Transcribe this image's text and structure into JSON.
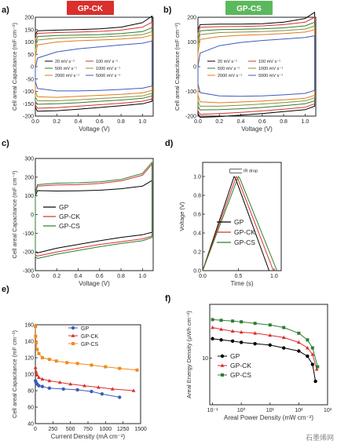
{
  "page": {
    "badges": {
      "a": "GP-CK",
      "b": "GP-CS"
    },
    "badge_colors": {
      "a": "#d9302c",
      "b": "#5cb85c"
    },
    "watermark": "石墨烯网"
  },
  "chart_data": [
    {
      "id": "a",
      "panel_label": "a)",
      "type": "line",
      "xlabel": "Voltage (V)",
      "ylabel": "Cell areal Capacitance (mF cm⁻²)",
      "xlim": [
        0.0,
        1.1
      ],
      "ylim": [
        -200,
        200
      ],
      "xticks": [
        0.0,
        0.2,
        0.4,
        0.6,
        0.8,
        1.0
      ],
      "yticks": [
        -200,
        -150,
        -100,
        -50,
        0,
        50,
        100,
        150,
        200
      ],
      "xtick_labels": [
        "0.0",
        "0.2",
        "0.4",
        "0.6",
        "0.8",
        "1.0"
      ],
      "ytick_labels": [
        "-200",
        "-150",
        "-100",
        "-50",
        "0",
        "50",
        "100",
        "150",
        "200"
      ],
      "legend_position": "center",
      "series": [
        {
          "name": "20 mV s⁻¹",
          "color": "#000000",
          "upper": [
            130,
            145,
            148,
            150,
            153,
            160,
            178,
            205
          ],
          "lower": [
            -165,
            -180,
            -178,
            -172,
            -165,
            -158,
            -150,
            -140
          ],
          "x0": [
            0.0,
            0.02,
            0.2,
            0.4,
            0.6,
            0.8,
            1.0,
            1.09
          ]
        },
        {
          "name": "100 mV s⁻¹",
          "color": "#d9302c",
          "upper": [
            115,
            135,
            138,
            140,
            143,
            148,
            160,
            180
          ],
          "lower": [
            -155,
            -168,
            -166,
            -160,
            -154,
            -148,
            -140,
            -130
          ]
        },
        {
          "name": "500 mV s⁻¹",
          "color": "#2e7d32",
          "upper": [
            95,
            122,
            126,
            128,
            130,
            134,
            142,
            158
          ],
          "lower": [
            -140,
            -152,
            -150,
            -146,
            -140,
            -135,
            -128,
            -118
          ]
        },
        {
          "name": "1000 mV s⁻¹",
          "color": "#8a8f3a",
          "upper": [
            70,
            108,
            115,
            118,
            120,
            124,
            130,
            142
          ],
          "lower": [
            -122,
            -138,
            -138,
            -134,
            -129,
            -124,
            -118,
            -108
          ]
        },
        {
          "name": "2000 mV s⁻¹",
          "color": "#e07b1a",
          "upper": [
            40,
            88,
            100,
            105,
            108,
            112,
            118,
            128
          ],
          "lower": [
            -100,
            -122,
            -124,
            -120,
            -116,
            -112,
            -106,
            -96
          ]
        },
        {
          "name": "5000 mV s⁻¹",
          "color": "#3b5bbf",
          "upper": [
            -5,
            35,
            60,
            72,
            80,
            88,
            95,
            104
          ],
          "lower": [
            -60,
            -88,
            -98,
            -98,
            -96,
            -92,
            -87,
            -78
          ]
        }
      ]
    },
    {
      "id": "b",
      "panel_label": "b)",
      "type": "line",
      "xlabel": "Voltage (V)",
      "ylabel": "Cell areal Capacitance (mF cm⁻²)",
      "xlim": [
        0.0,
        1.1
      ],
      "ylim": [
        -200,
        200
      ],
      "xticks": [
        0.0,
        0.2,
        0.4,
        0.6,
        0.8,
        1.0
      ],
      "yticks": [
        -200,
        -100,
        0,
        100,
        200
      ],
      "xtick_labels": [
        "0.0",
        "0.2",
        "0.4",
        "0.6",
        "0.8",
        "1.0"
      ],
      "ytick_labels": [
        "-200",
        "-100",
        "0",
        "100",
        "200"
      ],
      "legend_position": "center",
      "series": [
        {
          "name": "20 mV s⁻¹",
          "color": "#000000",
          "upper": [
            150,
            170,
            172,
            172,
            174,
            180,
            195,
            220
          ],
          "lower": [
            -190,
            -205,
            -202,
            -196,
            -190,
            -182,
            -174,
            -160
          ]
        },
        {
          "name": "100 mV s⁻¹",
          "color": "#d9302c",
          "upper": [
            135,
            160,
            162,
            163,
            165,
            170,
            180,
            200
          ],
          "lower": [
            -178,
            -193,
            -190,
            -185,
            -179,
            -172,
            -164,
            -150
          ]
        },
        {
          "name": "500 mV s⁻¹",
          "color": "#2e7d32",
          "upper": [
            110,
            145,
            150,
            151,
            153,
            157,
            165,
            180
          ],
          "lower": [
            -160,
            -175,
            -174,
            -170,
            -165,
            -158,
            -150,
            -138
          ]
        },
        {
          "name": "1000 mV s⁻¹",
          "color": "#8a8f3a",
          "upper": [
            85,
            130,
            138,
            140,
            142,
            146,
            152,
            165
          ],
          "lower": [
            -140,
            -160,
            -160,
            -156,
            -151,
            -145,
            -138,
            -126
          ]
        },
        {
          "name": "2000 mV s⁻¹",
          "color": "#e07b1a",
          "upper": [
            55,
            110,
            122,
            127,
            130,
            134,
            140,
            150
          ],
          "lower": [
            -115,
            -142,
            -146,
            -143,
            -139,
            -134,
            -128,
            -116
          ]
        },
        {
          "name": "5000 mV s⁻¹",
          "color": "#3b5bbf",
          "upper": [
            0,
            55,
            85,
            98,
            106,
            112,
            118,
            125
          ],
          "lower": [
            -70,
            -105,
            -118,
            -120,
            -118,
            -114,
            -108,
            -96
          ]
        }
      ]
    },
    {
      "id": "c",
      "panel_label": "c)",
      "type": "line",
      "xlabel": "Voltage (V)",
      "ylabel": "Cell areal Capacitance (mF cm⁻²)",
      "xlim": [
        0.0,
        1.1
      ],
      "ylim": [
        -300,
        300
      ],
      "xticks": [
        0.0,
        0.2,
        0.4,
        0.6,
        0.8,
        1.0
      ],
      "yticks": [
        -300,
        -200,
        -100,
        0,
        100,
        200,
        300
      ],
      "xtick_labels": [
        "0.0",
        "0.2",
        "0.4",
        "0.6",
        "0.8",
        "1.0"
      ],
      "ytick_labels": [
        "-300",
        "-200",
        "-100",
        "0",
        "100",
        "200",
        "300"
      ],
      "legend_position": "center-left",
      "series": [
        {
          "name": "GP",
          "color": "#000000",
          "upper": [
            100,
            128,
            126,
            127,
            130,
            138,
            152,
            182
          ],
          "lower": [
            -200,
            -205,
            -180,
            -160,
            -140,
            -122,
            -108,
            -95
          ]
        },
        {
          "name": "GP-CK",
          "color": "#d9302c",
          "upper": [
            110,
            152,
            158,
            160,
            166,
            180,
            210,
            270
          ],
          "lower": [
            -215,
            -222,
            -200,
            -180,
            -160,
            -145,
            -130,
            -115
          ]
        },
        {
          "name": "GP-CS",
          "color": "#2e7d32",
          "upper": [
            115,
            160,
            168,
            170,
            175,
            188,
            220,
            280
          ],
          "lower": [
            -225,
            -235,
            -212,
            -192,
            -172,
            -155,
            -140,
            -122
          ]
        }
      ]
    },
    {
      "id": "d",
      "panel_label": "d)",
      "type": "line",
      "xlabel": "Time (s)",
      "ylabel": "Voltage (V)",
      "xlim": [
        0.0,
        1.1
      ],
      "ylim": [
        0.0,
        1.15
      ],
      "xticks": [
        0.0,
        0.5,
        1.0
      ],
      "yticks": [
        0.0,
        0.2,
        0.4,
        0.6,
        0.8,
        1.0
      ],
      "xtick_labels": [
        "0.0",
        "0.5",
        "1.0"
      ],
      "ytick_labels": [
        "0.0",
        "0.2",
        "0.4",
        "0.6",
        "0.8",
        "1.0"
      ],
      "annotation": "IR drop",
      "legend_position": "center",
      "series": [
        {
          "name": "GP",
          "color": "#000000",
          "peak_t": 0.44,
          "end_t": 0.93
        },
        {
          "name": "GP-CK",
          "color": "#d9302c",
          "peak_t": 0.47,
          "end_t": 0.99
        },
        {
          "name": "GP-CS",
          "color": "#2e7d32",
          "peak_t": 0.5,
          "end_t": 1.04
        }
      ]
    },
    {
      "id": "e",
      "panel_label": "e)",
      "type": "line",
      "xlabel": "Current Density (mA cm⁻²)",
      "ylabel": "Cell areal Capacitance (mF cm⁻²)",
      "xlim": [
        0,
        1500
      ],
      "ylim": [
        40,
        160
      ],
      "xticks": [
        0,
        250,
        500,
        750,
        1000,
        1250,
        1500
      ],
      "yticks": [
        40,
        60,
        80,
        100,
        120,
        140,
        160
      ],
      "xtick_labels": [
        "0",
        "250",
        "500",
        "750",
        "1000",
        "1250",
        "1500"
      ],
      "ytick_labels": [
        "40",
        "60",
        "80",
        "100",
        "120",
        "140",
        "160"
      ],
      "legend_position": "upper-right",
      "series": [
        {
          "name": "GP",
          "color": "#3b5bbf",
          "marker": "circle",
          "x": [
            2,
            10,
            25,
            50,
            100,
            200,
            400,
            600,
            800,
            950,
            1200
          ],
          "y": [
            92,
            90,
            88,
            86,
            85,
            83,
            82,
            81,
            79,
            76,
            72
          ]
        },
        {
          "name": "GP-CK",
          "color": "#d9302c",
          "marker": "triangle",
          "x": [
            2,
            10,
            25,
            50,
            100,
            200,
            350,
            500,
            700,
            900,
            1100,
            1400
          ],
          "y": [
            108,
            103,
            99,
            96,
            94,
            92,
            90,
            88,
            86,
            84,
            82,
            80
          ]
        },
        {
          "name": "GP-CS",
          "color": "#f08a1e",
          "marker": "square",
          "x": [
            2,
            5,
            10,
            25,
            50,
            100,
            200,
            300,
            450,
            600,
            800,
            1000,
            1200,
            1450
          ],
          "y": [
            158,
            146,
            138,
            130,
            125,
            120,
            118,
            116,
            114,
            113,
            111,
            109,
            107,
            105
          ]
        }
      ]
    },
    {
      "id": "f",
      "panel_label": "f)",
      "type": "line",
      "xlabel": "Areal Power Density (mW cm⁻²)",
      "ylabel": "Areal Energy Density (μWh cm⁻²)",
      "xlim": [
        0.08,
        1000
      ],
      "ylim": [
        3,
        40
      ],
      "xscale": "log",
      "yscale": "log",
      "xticks": [
        0.1,
        1,
        10,
        100,
        1000
      ],
      "yticks": [
        10
      ],
      "xtick_labels": [
        "10⁻¹",
        "10⁰",
        "10¹",
        "10²",
        "10³"
      ],
      "ytick_labels": [
        "10"
      ],
      "legend_position": "center-left",
      "series": [
        {
          "name": "GP",
          "color": "#000000",
          "marker": "circle",
          "x": [
            0.1,
            0.2,
            0.5,
            1,
            3,
            10,
            30,
            100,
            200,
            300,
            380
          ],
          "y": [
            16.5,
            16,
            15.5,
            15,
            14.5,
            14,
            13,
            12,
            10.5,
            8.5,
            5.5
          ]
        },
        {
          "name": "GP-CK",
          "color": "#d9302c",
          "marker": "triangle",
          "x": [
            0.1,
            0.2,
            0.5,
            1,
            3,
            10,
            30,
            100,
            200,
            300,
            420
          ],
          "y": [
            22,
            21,
            20,
            19.5,
            19,
            18,
            17,
            15,
            13,
            11,
            7.5
          ]
        },
        {
          "name": "GP-CS",
          "color": "#2e7d32",
          "marker": "square",
          "x": [
            0.1,
            0.2,
            0.5,
            1,
            3,
            10,
            30,
            100,
            200,
            300,
            450
          ],
          "y": [
            27,
            26.5,
            26,
            25.5,
            24.5,
            23.5,
            22,
            19,
            16,
            13,
            8
          ]
        }
      ]
    }
  ]
}
